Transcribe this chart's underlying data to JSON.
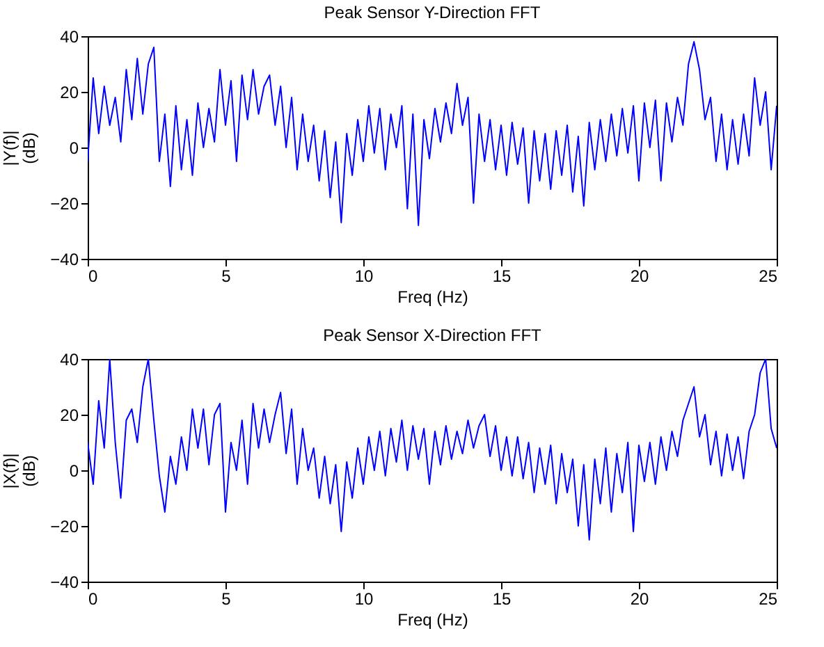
{
  "chart_data": [
    {
      "type": "line",
      "title": "Peak Sensor Y-Direction FFT",
      "xlabel": "Freq (Hz)",
      "ylabel": "|Y(f)|\n(dB)",
      "xlim": [
        0,
        25
      ],
      "xticks": [
        0,
        5,
        10,
        15,
        20,
        25
      ],
      "ylim": [
        -40,
        40
      ],
      "yticks": [
        -40,
        -20,
        0,
        20,
        40
      ],
      "grid": false,
      "x": [
        0,
        0.2,
        0.4,
        0.6,
        0.8,
        1,
        1.2,
        1.4,
        1.6,
        1.8,
        2,
        2.2,
        2.4,
        2.6,
        2.8,
        3,
        3.2,
        3.4,
        3.6,
        3.8,
        4,
        4.2,
        4.4,
        4.6,
        4.8,
        5,
        5.2,
        5.4,
        5.6,
        5.8,
        6,
        6.2,
        6.4,
        6.6,
        6.8,
        7,
        7.2,
        7.4,
        7.6,
        7.8,
        8,
        8.2,
        8.4,
        8.6,
        8.8,
        9,
        9.2,
        9.4,
        9.6,
        9.8,
        10,
        10.2,
        10.4,
        10.6,
        10.8,
        11,
        11.2,
        11.4,
        11.6,
        11.8,
        12,
        12.2,
        12.4,
        12.6,
        12.8,
        13,
        13.2,
        13.4,
        13.6,
        13.8,
        14,
        14.2,
        14.4,
        14.6,
        14.8,
        15,
        15.2,
        15.4,
        15.6,
        15.8,
        16,
        16.2,
        16.4,
        16.6,
        16.8,
        17,
        17.2,
        17.4,
        17.6,
        17.8,
        18,
        18.2,
        18.4,
        18.6,
        18.8,
        19,
        19.2,
        19.4,
        19.6,
        19.8,
        20,
        20.2,
        20.4,
        20.6,
        20.8,
        21,
        21.2,
        21.4,
        21.6,
        21.8,
        22,
        22.2,
        22.4,
        22.6,
        22.8,
        23,
        23.2,
        23.4,
        23.6,
        23.8,
        24,
        24.2,
        24.4,
        24.6,
        24.8,
        25
      ],
      "series": [
        {
          "color": "#0000ff",
          "values": [
            -5,
            25,
            5,
            22,
            8,
            18,
            2,
            28,
            10,
            32,
            12,
            30,
            36,
            -5,
            12,
            -14,
            15,
            -8,
            10,
            -10,
            16,
            0,
            14,
            2,
            28,
            8,
            24,
            -5,
            26,
            10,
            28,
            12,
            22,
            26,
            8,
            22,
            0,
            18,
            -8,
            12,
            -5,
            8,
            -12,
            6,
            -18,
            2,
            -27,
            5,
            -10,
            10,
            -5,
            15,
            -2,
            14,
            -8,
            12,
            0,
            15,
            -22,
            12,
            -28,
            10,
            -4,
            14,
            2,
            16,
            5,
            23,
            8,
            18,
            -20,
            12,
            -5,
            10,
            -8,
            8,
            -10,
            9,
            -6,
            7,
            -20,
            6,
            -12,
            5,
            -15,
            6,
            -10,
            8,
            -16,
            4,
            -21,
            9,
            -8,
            10,
            -5,
            12,
            -3,
            14,
            -2,
            15,
            -12,
            16,
            0,
            17,
            -12,
            16,
            2,
            18,
            8,
            30,
            38,
            28,
            10,
            18,
            -5,
            12,
            -8,
            10,
            -6,
            12,
            -3,
            25,
            8,
            20,
            -8,
            15
          ]
        }
      ]
    },
    {
      "type": "line",
      "title": "Peak Sensor X-Direction FFT",
      "xlabel": "Freq (Hz)",
      "ylabel": "|X(f)|\n(dB)",
      "xlim": [
        0,
        25
      ],
      "xticks": [
        0,
        5,
        10,
        15,
        20,
        25
      ],
      "ylim": [
        -40,
        40
      ],
      "yticks": [
        -40,
        -20,
        0,
        20,
        40
      ],
      "grid": false,
      "x": [
        0,
        0.2,
        0.4,
        0.6,
        0.8,
        1,
        1.2,
        1.4,
        1.6,
        1.8,
        2,
        2.2,
        2.4,
        2.6,
        2.8,
        3,
        3.2,
        3.4,
        3.6,
        3.8,
        4,
        4.2,
        4.4,
        4.6,
        4.8,
        5,
        5.2,
        5.4,
        5.6,
        5.8,
        6,
        6.2,
        6.4,
        6.6,
        6.8,
        7,
        7.2,
        7.4,
        7.6,
        7.8,
        8,
        8.2,
        8.4,
        8.6,
        8.8,
        9,
        9.2,
        9.4,
        9.6,
        9.8,
        10,
        10.2,
        10.4,
        10.6,
        10.8,
        11,
        11.2,
        11.4,
        11.6,
        11.8,
        12,
        12.2,
        12.4,
        12.6,
        12.8,
        13,
        13.2,
        13.4,
        13.6,
        13.8,
        14,
        14.2,
        14.4,
        14.6,
        14.8,
        15,
        15.2,
        15.4,
        15.6,
        15.8,
        16,
        16.2,
        16.4,
        16.6,
        16.8,
        17,
        17.2,
        17.4,
        17.6,
        17.8,
        18,
        18.2,
        18.4,
        18.6,
        18.8,
        19,
        19.2,
        19.4,
        19.6,
        19.8,
        20,
        20.2,
        20.4,
        20.6,
        20.8,
        21,
        21.2,
        21.4,
        21.6,
        21.8,
        22,
        22.2,
        22.4,
        22.6,
        22.8,
        23,
        23.2,
        23.4,
        23.6,
        23.8,
        24,
        24.2,
        24.4,
        24.6,
        24.8,
        25
      ],
      "series": [
        {
          "color": "#0000ff",
          "values": [
            10,
            -5,
            25,
            8,
            40,
            10,
            -10,
            18,
            22,
            10,
            30,
            40,
            18,
            -2,
            -15,
            5,
            -5,
            12,
            0,
            22,
            8,
            22,
            2,
            20,
            24,
            -15,
            10,
            0,
            18,
            -5,
            24,
            8,
            22,
            10,
            20,
            28,
            6,
            22,
            -5,
            15,
            0,
            8,
            -10,
            5,
            -12,
            2,
            -22,
            3,
            -10,
            8,
            -5,
            12,
            0,
            14,
            -2,
            15,
            3,
            18,
            0,
            16,
            4,
            15,
            -5,
            14,
            2,
            16,
            4,
            14,
            6,
            18,
            8,
            16,
            20,
            5,
            16,
            0,
            12,
            -2,
            12,
            -3,
            10,
            -8,
            8,
            -5,
            9,
            -12,
            6,
            -8,
            4,
            -20,
            2,
            -25,
            4,
            -12,
            8,
            -15,
            6,
            -8,
            10,
            -22,
            9,
            -4,
            10,
            -5,
            12,
            0,
            14,
            5,
            18,
            24,
            30,
            12,
            20,
            2,
            14,
            -2,
            13,
            0,
            12,
            -3,
            14,
            20,
            35,
            40,
            15,
            8
          ]
        }
      ]
    }
  ]
}
